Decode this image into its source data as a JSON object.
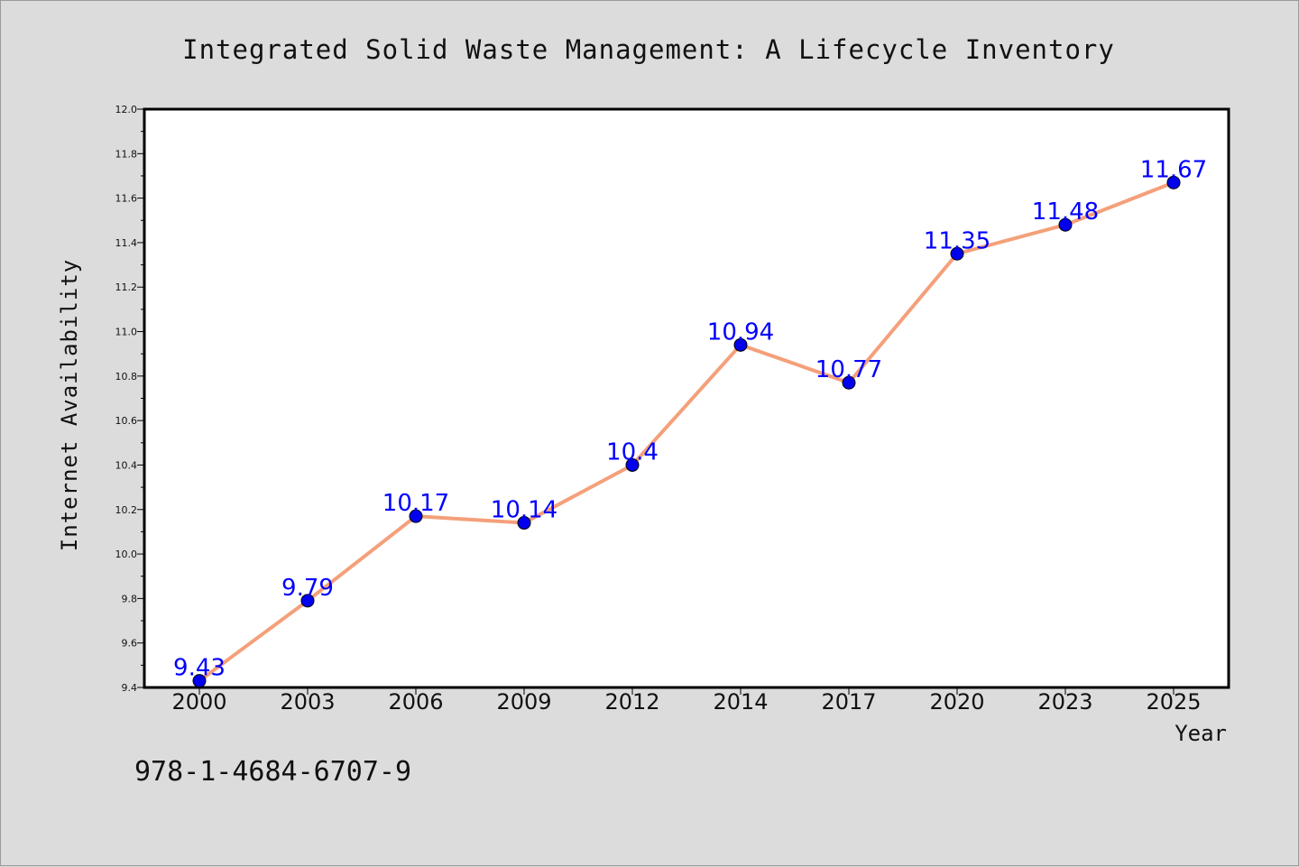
{
  "chart_data": {
    "type": "line",
    "title": "Integrated Solid Waste Management: A Lifecycle Inventory",
    "xlabel": "Year",
    "ylabel": "Internet Availability",
    "categories": [
      "2000",
      "2003",
      "2006",
      "2009",
      "2012",
      "2014",
      "2017",
      "2020",
      "2023",
      "2025"
    ],
    "series": [
      {
        "values": [
          9.43,
          9.79,
          10.17,
          10.14,
          10.4,
          10.94,
          10.77,
          11.35,
          11.48,
          11.67
        ],
        "data_labels": [
          "9.43",
          "9.79",
          "10.17",
          "10.14",
          "10.4",
          "10.94",
          "10.77",
          "11.35",
          "11.48",
          "11.67"
        ],
        "line_color": "#f4a07a",
        "marker_color": "#0000ee"
      }
    ],
    "ylim": [
      9.4,
      12.0
    ],
    "yticks": [
      "9.4",
      "9.6",
      "9.8",
      "10.0",
      "10.2",
      "10.4",
      "10.6",
      "10.8",
      "11.0",
      "11.2",
      "11.4",
      "11.6",
      "11.8",
      "12.0"
    ],
    "grid": false,
    "legend": "none"
  },
  "annotation": {
    "isbn": "978-1-4684-6707-9"
  }
}
